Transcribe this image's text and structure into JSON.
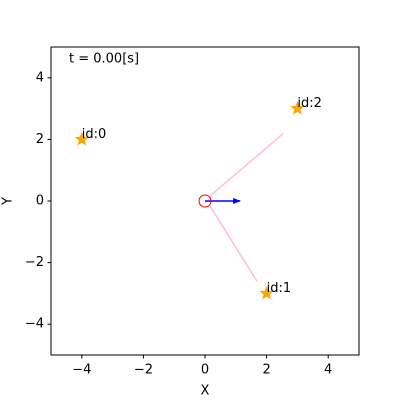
{
  "chart_data": {
    "type": "scatter",
    "annotation": "t = 0.00[s]",
    "xlabel": "X",
    "ylabel": "Y",
    "xlim": [
      -5,
      5
    ],
    "ylim": [
      -5,
      5
    ],
    "xticks": [
      {
        "value": -4,
        "label": "−4"
      },
      {
        "value": -2,
        "label": "−2"
      },
      0,
      2,
      4
    ],
    "yticks": [
      {
        "value": -4,
        "label": "−4"
      },
      {
        "value": -2,
        "label": "−2"
      },
      0,
      2,
      4
    ],
    "series": [
      {
        "color": "orange",
        "x": [
          -4,
          2,
          3
        ],
        "y": [
          2,
          -3,
          3
        ],
        "labels": [
          "id:0",
          "id:1",
          "id:2"
        ]
      }
    ],
    "robot": {
      "x": 0,
      "y": 0,
      "color": "red"
    },
    "heading": {
      "x": [
        0,
        1.14
      ],
      "y": [
        0,
        0
      ],
      "color": "blue"
    },
    "observations": {
      "color": "pink",
      "lines": [
        {
          "x": [
            0.16,
            2.54
          ],
          "y": [
            0.16,
            2.19
          ]
        },
        {
          "x": [
            0.16,
            1.69
          ],
          "y": [
            -0.16,
            -2.61
          ]
        }
      ]
    }
  }
}
